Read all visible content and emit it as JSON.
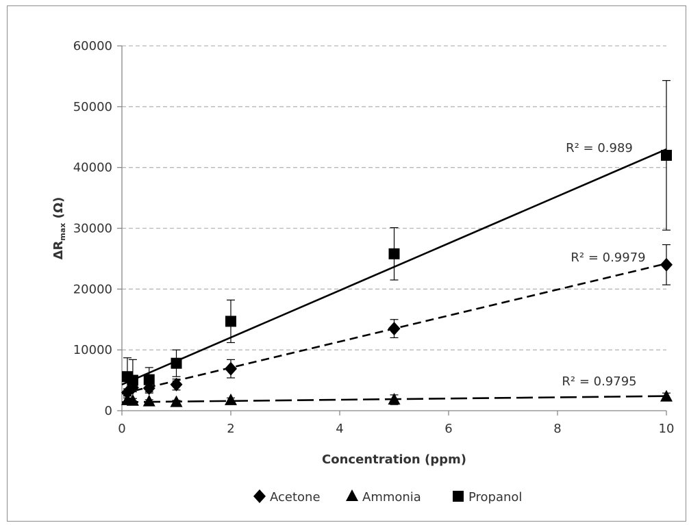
{
  "chart_data": {
    "type": "scatter",
    "title": "",
    "xlabel": "Concentration (ppm)",
    "ylabel": {
      "prefix": "ΔR",
      "subscript": "max",
      "suffix": " (Ω)"
    },
    "xlim": [
      0,
      10
    ],
    "ylim": [
      0,
      60000
    ],
    "xticks": [
      0,
      2,
      4,
      6,
      8,
      10
    ],
    "yticks": [
      0,
      10000,
      20000,
      30000,
      40000,
      50000,
      60000
    ],
    "grid": "horizontal dashed",
    "legend_position": "bottom",
    "series": [
      {
        "name": "Acetone",
        "marker": "diamond",
        "x": [
          0.1,
          0.2,
          0.5,
          1,
          2,
          5,
          10
        ],
        "y": [
          3000,
          3800,
          3700,
          4300,
          6900,
          13500,
          24000
        ],
        "err": [
          600,
          700,
          800,
          900,
          1500,
          1500,
          3300
        ],
        "trendline": {
          "x": [
            0,
            10
          ],
          "y": [
            2800,
            24200
          ],
          "style": "dashed",
          "r2_label": "R² = 0.9979"
        }
      },
      {
        "name": "Ammonia",
        "marker": "triangle",
        "x": [
          0.1,
          0.2,
          0.5,
          1,
          2,
          5,
          10
        ],
        "y": [
          1700,
          1600,
          1500,
          1400,
          1700,
          1800,
          2300
        ],
        "err": [
          400,
          400,
          300,
          300,
          400,
          800,
          600
        ],
        "trendline": {
          "x": [
            0,
            10
          ],
          "y": [
            1400,
            2400
          ],
          "style": "long-dashed",
          "r2_label": "R² = 0.9795"
        }
      },
      {
        "name": "Propanol",
        "marker": "square",
        "x": [
          0.1,
          0.2,
          0.5,
          1,
          2,
          5,
          10
        ],
        "y": [
          5600,
          5000,
          5100,
          7800,
          14700,
          25800,
          42000
        ],
        "err": [
          3100,
          3400,
          2000,
          2200,
          3500,
          4300,
          12300
        ],
        "trendline": {
          "x": [
            0,
            10
          ],
          "y": [
            4300,
            43000
          ],
          "style": "solid",
          "r2_label": "R² = 0.989"
        }
      }
    ]
  }
}
